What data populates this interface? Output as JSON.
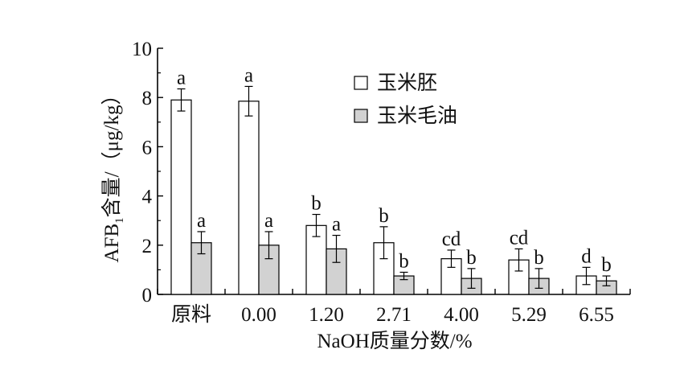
{
  "chart_data": {
    "type": "bar",
    "title": "",
    "xlabel": "NaOH质量分数/%",
    "ylabel_main": "AFB",
    "ylabel_sub": "1",
    "ylabel_rest": "含量/（μg/kg）",
    "ylim": [
      0,
      10
    ],
    "yticks": [
      "0",
      "2",
      "4",
      "6",
      "8",
      "10"
    ],
    "legend_position": "top-right",
    "categories": [
      "原料",
      "0.00",
      "1.20",
      "2.71",
      "4.00",
      "5.29",
      "6.55"
    ],
    "series": [
      {
        "name": "玉米胚",
        "fill": "#ffffff",
        "values": [
          7.9,
          7.85,
          2.8,
          2.1,
          1.45,
          1.4,
          0.75
        ],
        "errors": [
          0.45,
          0.6,
          0.45,
          0.65,
          0.35,
          0.45,
          0.35
        ],
        "labels": [
          "a",
          "a",
          "b",
          "b",
          "cd",
          "cd",
          "d"
        ]
      },
      {
        "name": "玉米毛油",
        "fill": "#d2d2d2",
        "values": [
          2.1,
          2.0,
          1.85,
          0.75,
          0.65,
          0.65,
          0.55
        ],
        "errors": [
          0.45,
          0.55,
          0.55,
          0.15,
          0.4,
          0.4,
          0.2
        ],
        "labels": [
          "a",
          "a",
          "a",
          "b",
          "b",
          "b",
          "b"
        ]
      }
    ]
  }
}
